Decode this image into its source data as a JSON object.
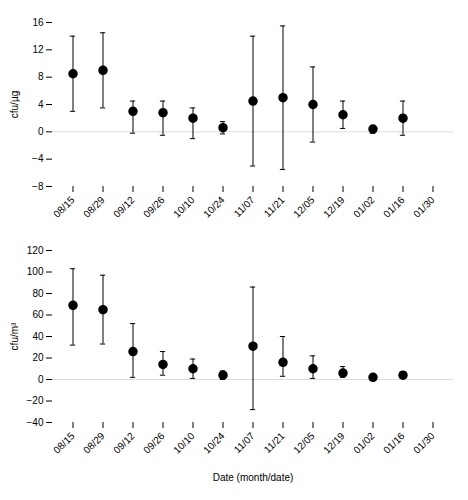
{
  "chart_data": [
    {
      "type": "scatter",
      "ylabel": "cfu/µg",
      "categories": [
        "08/15",
        "08/29",
        "09/12",
        "09/26",
        "10/10",
        "10/24",
        "11/07",
        "11/21",
        "12/05",
        "12/19",
        "01/02",
        "01/16",
        "01/30"
      ],
      "values": [
        8.5,
        9.0,
        3.0,
        2.8,
        2.0,
        0.6,
        4.5,
        5.0,
        4.0,
        2.5,
        0.4,
        2.0,
        null
      ],
      "lower": [
        3.0,
        3.5,
        -0.2,
        -0.5,
        -1.0,
        -0.3,
        -5.0,
        -5.5,
        -1.5,
        0.5,
        -0.2,
        -0.5,
        null
      ],
      "upper": [
        14.0,
        14.5,
        4.5,
        4.5,
        3.5,
        1.5,
        14.0,
        15.5,
        9.5,
        4.5,
        0.8,
        4.5,
        null
      ],
      "ylim": [
        -8,
        16
      ],
      "yticks": [
        -8,
        -4,
        0,
        4,
        8,
        12,
        16
      ],
      "color": "black",
      "marker": "circle"
    },
    {
      "type": "scatter",
      "ylabel": "cfu/m³",
      "xlabel": "Date (month/date)",
      "categories": [
        "08/15",
        "08/29",
        "09/12",
        "09/26",
        "10/10",
        "10/24",
        "11/07",
        "11/21",
        "12/05",
        "12/19",
        "01/02",
        "01/16",
        "01/30"
      ],
      "values": [
        69,
        65,
        26,
        14,
        10,
        4,
        31,
        16,
        10,
        6,
        2,
        4,
        null
      ],
      "lower": [
        32,
        33,
        2,
        4,
        1,
        0,
        -28,
        3,
        1,
        2,
        0,
        1,
        null
      ],
      "upper": [
        103,
        97,
        52,
        26,
        19,
        8,
        86,
        40,
        22,
        12,
        4,
        7,
        null
      ],
      "ylim": [
        -40,
        120
      ],
      "yticks": [
        -40,
        -20,
        0,
        20,
        40,
        60,
        80,
        100,
        120
      ],
      "color": "black",
      "marker": "circle"
    }
  ]
}
